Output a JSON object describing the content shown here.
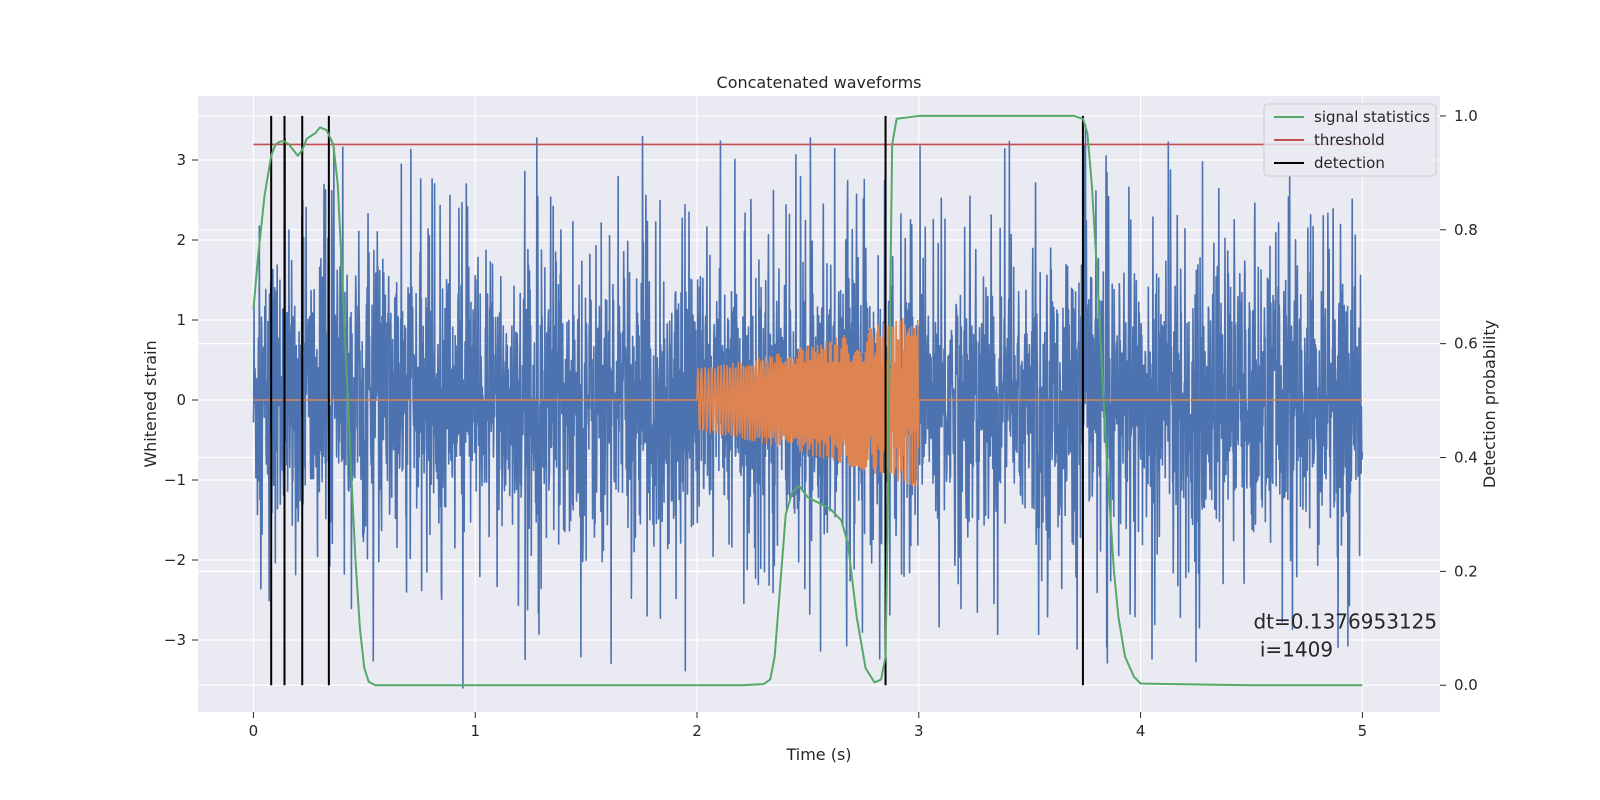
{
  "chart_data": {
    "type": "line",
    "title": "Concatenated waveforms",
    "xlabel": "Time (s)",
    "ylabel": "Whitened strain",
    "ylabel_right": "Detection probability",
    "xlim": [
      -0.25,
      5.35
    ],
    "ylim": [
      -3.9,
      3.8
    ],
    "ylim_right": [
      -0.047,
      1.035
    ],
    "x_ticks": [
      0,
      1,
      2,
      3,
      4,
      5
    ],
    "y_ticks": [
      -3,
      -2,
      -1,
      0,
      1,
      2,
      3
    ],
    "y_ticks_right": [
      0.0,
      0.2,
      0.4,
      0.6,
      0.8,
      1.0
    ],
    "grid": true,
    "legend_position": "top-right",
    "series": [
      {
        "name": "",
        "axis": "left",
        "kind": "noise",
        "color": "#4c72b0",
        "x_range": [
          0,
          5
        ],
        "typical_amplitude": 0.9,
        "peak_max": 3.45,
        "peak_min": -3.6
      },
      {
        "name": "",
        "axis": "left",
        "kind": "chirp",
        "color": "#dd8452",
        "x_range": [
          0,
          5
        ],
        "chirp_start": 2.0,
        "chirp_end": 3.0,
        "amplitude_start": 0.4,
        "amplitude_end": 1.1
      },
      {
        "name": "signal statistics",
        "axis": "right",
        "color": "#55a868",
        "x": [
          0,
          0.02,
          0.05,
          0.08,
          0.1,
          0.12,
          0.14,
          0.16,
          0.18,
          0.2,
          0.22,
          0.24,
          0.26,
          0.28,
          0.3,
          0.33,
          0.36,
          0.38,
          0.4,
          0.42,
          0.44,
          0.46,
          0.48,
          0.5,
          0.52,
          0.55,
          0.6,
          1.0,
          1.5,
          2.0,
          2.2,
          2.3,
          2.33,
          2.35,
          2.38,
          2.4,
          2.43,
          2.46,
          2.5,
          2.55,
          2.6,
          2.65,
          2.68,
          2.72,
          2.76,
          2.8,
          2.83,
          2.85,
          2.86,
          2.87,
          2.88,
          2.9,
          3.0,
          3.5,
          3.7,
          3.74,
          3.76,
          3.78,
          3.8,
          3.82,
          3.84,
          3.86,
          3.88,
          3.9,
          3.93,
          3.97,
          4.0,
          4.3,
          4.5,
          5.0
        ],
        "y": [
          0.66,
          0.75,
          0.86,
          0.93,
          0.95,
          0.955,
          0.955,
          0.95,
          0.94,
          0.93,
          0.94,
          0.96,
          0.965,
          0.97,
          0.98,
          0.975,
          0.95,
          0.88,
          0.72,
          0.55,
          0.38,
          0.22,
          0.1,
          0.03,
          0.006,
          0.0,
          0.0,
          0.0,
          0.0,
          0.0,
          0.0,
          0.002,
          0.01,
          0.05,
          0.2,
          0.3,
          0.34,
          0.35,
          0.33,
          0.32,
          0.31,
          0.29,
          0.25,
          0.12,
          0.03,
          0.005,
          0.01,
          0.05,
          0.3,
          0.65,
          0.95,
          0.995,
          1.0,
          1.0,
          1.0,
          0.995,
          0.97,
          0.88,
          0.75,
          0.6,
          0.45,
          0.32,
          0.2,
          0.12,
          0.05,
          0.015,
          0.003,
          0.001,
          0.0,
          0.0
        ]
      },
      {
        "name": "threshold",
        "axis": "right",
        "color": "#c44e52",
        "x": [
          0,
          5.1
        ],
        "y": [
          0.95,
          0.95
        ]
      },
      {
        "name": "detection",
        "axis": "right",
        "kind": "vlines",
        "color": "#000000",
        "x": [
          0.08,
          0.14,
          0.22,
          0.34,
          2.85,
          3.74
        ],
        "ymin": 0.0,
        "ymax": 1.0
      }
    ],
    "annotation": {
      "text_line1": "dt=0.1376953125",
      "text_line2": " i=1409",
      "x": 4.5,
      "y": 0.1
    }
  }
}
